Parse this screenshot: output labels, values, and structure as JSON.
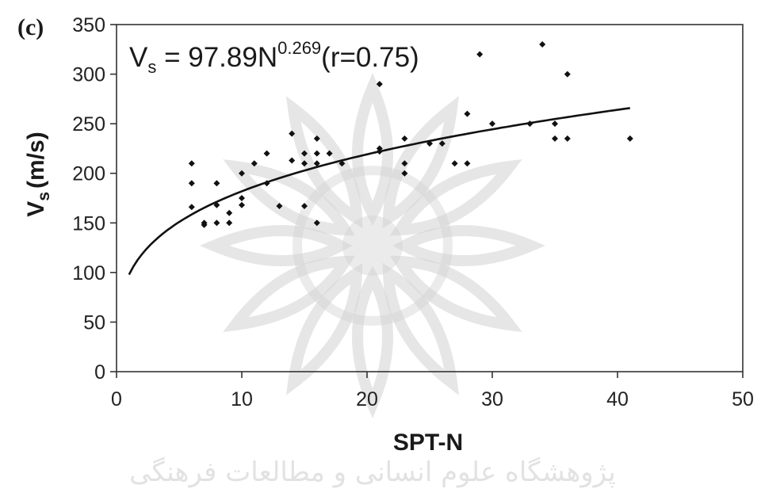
{
  "panel_label": "(c)",
  "equation": {
    "v": "V",
    "sub": "s",
    "main": " = 97.89N",
    "exp": "0.269",
    "tail": "(r=0.75)"
  },
  "chart_data": {
    "type": "scatter",
    "xlabel": "SPT-N",
    "ylabel": {
      "v": "V",
      "sub": "s",
      "unit": "(m/s)"
    },
    "xlim": [
      0,
      50
    ],
    "ylim": [
      0,
      350
    ],
    "xticks": [
      0,
      10,
      20,
      30,
      40,
      50
    ],
    "yticks": [
      0,
      50,
      100,
      150,
      200,
      250,
      300,
      350
    ],
    "grid": false,
    "legend": "none",
    "points": [
      {
        "x": 6,
        "y": 210
      },
      {
        "x": 6,
        "y": 190
      },
      {
        "x": 6,
        "y": 166
      },
      {
        "x": 7,
        "y": 150
      },
      {
        "x": 7,
        "y": 148
      },
      {
        "x": 8,
        "y": 190
      },
      {
        "x": 8,
        "y": 168
      },
      {
        "x": 8,
        "y": 150
      },
      {
        "x": 9,
        "y": 160
      },
      {
        "x": 9,
        "y": 150
      },
      {
        "x": 10,
        "y": 200
      },
      {
        "x": 10,
        "y": 175
      },
      {
        "x": 10,
        "y": 168
      },
      {
        "x": 11,
        "y": 210
      },
      {
        "x": 12,
        "y": 220
      },
      {
        "x": 12,
        "y": 190
      },
      {
        "x": 13,
        "y": 167
      },
      {
        "x": 14,
        "y": 240
      },
      {
        "x": 14,
        "y": 213
      },
      {
        "x": 15,
        "y": 220
      },
      {
        "x": 15,
        "y": 210
      },
      {
        "x": 15,
        "y": 167
      },
      {
        "x": 16,
        "y": 235
      },
      {
        "x": 16,
        "y": 220
      },
      {
        "x": 16,
        "y": 210
      },
      {
        "x": 16,
        "y": 150
      },
      {
        "x": 17,
        "y": 220
      },
      {
        "x": 18,
        "y": 210
      },
      {
        "x": 21,
        "y": 290
      },
      {
        "x": 21,
        "y": 225
      },
      {
        "x": 21,
        "y": 222
      },
      {
        "x": 23,
        "y": 235
      },
      {
        "x": 23,
        "y": 210
      },
      {
        "x": 23,
        "y": 200
      },
      {
        "x": 25,
        "y": 230
      },
      {
        "x": 26,
        "y": 230
      },
      {
        "x": 27,
        "y": 210
      },
      {
        "x": 28,
        "y": 260
      },
      {
        "x": 28,
        "y": 210
      },
      {
        "x": 29,
        "y": 320
      },
      {
        "x": 30,
        "y": 250
      },
      {
        "x": 33,
        "y": 250
      },
      {
        "x": 34,
        "y": 330
      },
      {
        "x": 35,
        "y": 250
      },
      {
        "x": 35,
        "y": 235
      },
      {
        "x": 36,
        "y": 300
      },
      {
        "x": 36,
        "y": 235
      },
      {
        "x": 41,
        "y": 235
      }
    ],
    "fit": {
      "a": 97.89,
      "b": 0.269,
      "x_from": 1,
      "x_to": 41
    }
  },
  "watermark": {
    "text": "پژوهشگاه علوم انسانی و مطالعات فرهنگی",
    "color": "#d2d2d2"
  }
}
